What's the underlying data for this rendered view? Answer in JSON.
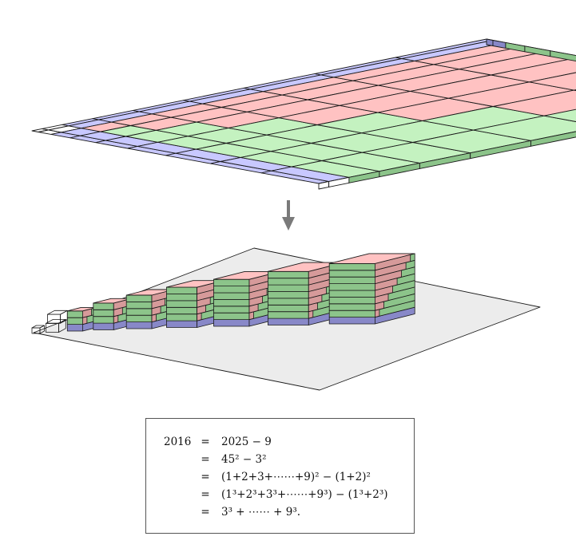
{
  "arrow_color": "#7a7a7a",
  "colors": {
    "pink_top": "#ffc2c2",
    "pink_side": "#d69a9a",
    "green_top": "#c4f2c0",
    "green_side": "#8cc48a",
    "blue_top": "#c8c8ff",
    "blue_side": "#8888c8",
    "floor": "#ececec"
  },
  "staircase_sizes": [
    1,
    2,
    3,
    4,
    5,
    6,
    7,
    8,
    9
  ],
  "formula": {
    "lhs": "2016",
    "rows": [
      {
        "eq": "=",
        "expr": "2025 − 9"
      },
      {
        "eq": "=",
        "expr": "45² − 3²"
      },
      {
        "eq": "=",
        "expr": "(1+2+3+⋯⋯+9)² − (1+2)²"
      },
      {
        "eq": "=",
        "expr": "(1³+2³+3³+⋯⋯+9³) − (1³+2³)"
      },
      {
        "eq": "=",
        "expr": "3³ + ⋯⋯ + 9³."
      }
    ]
  }
}
